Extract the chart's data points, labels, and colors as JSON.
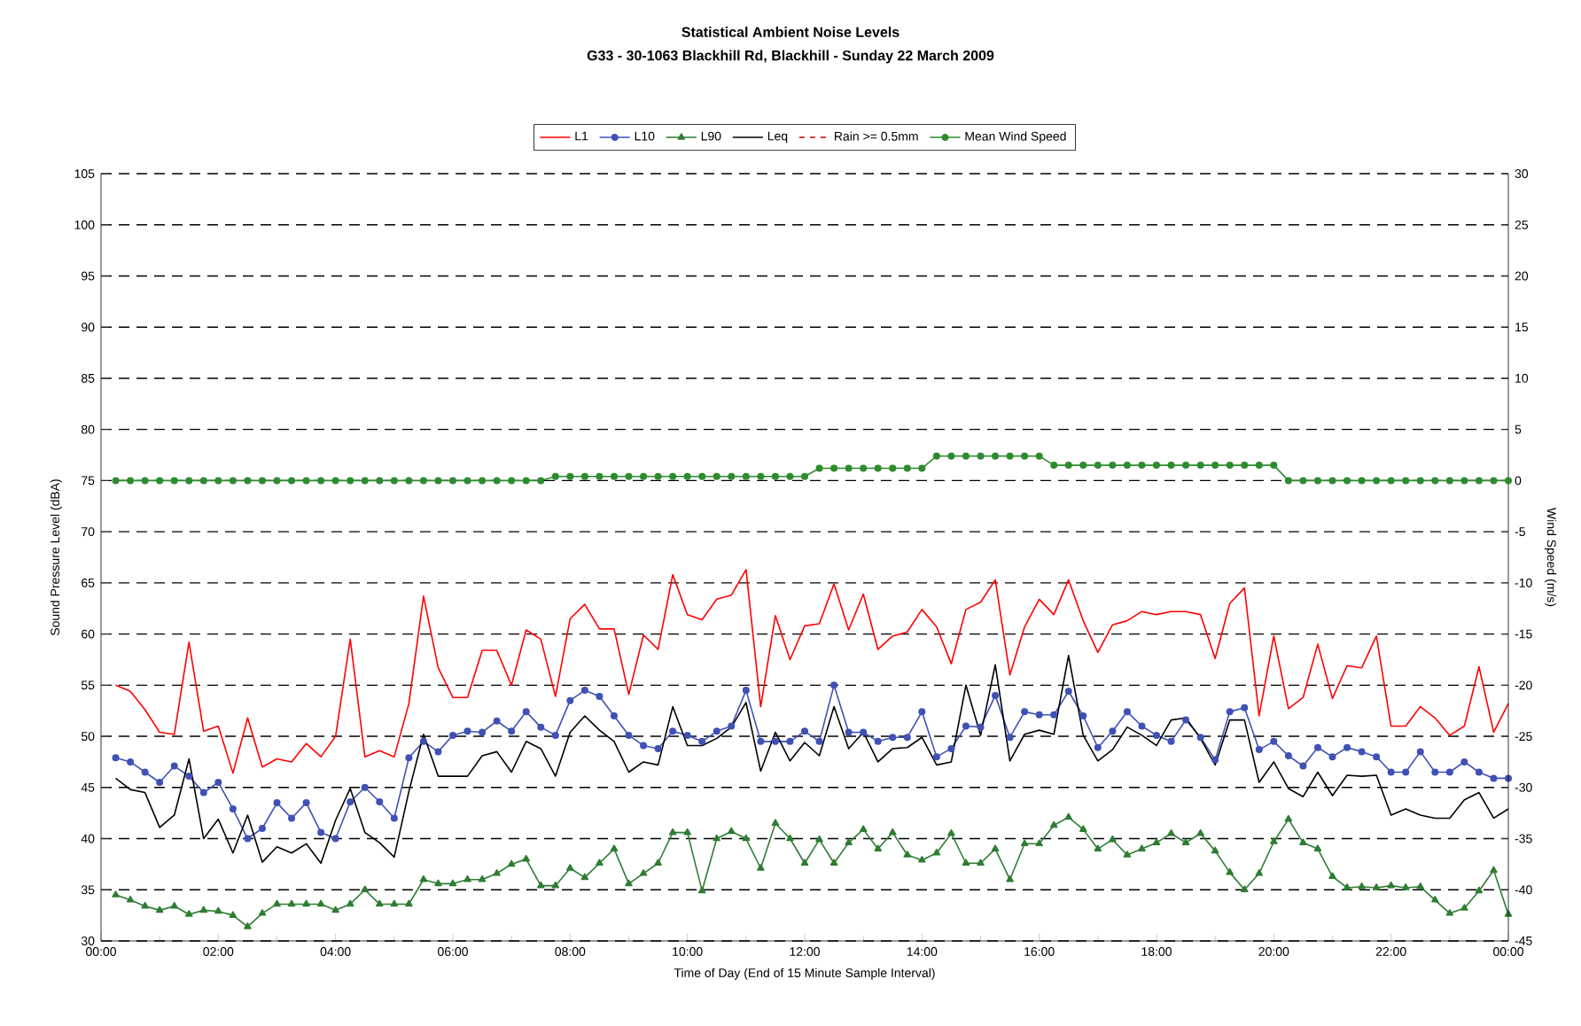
{
  "chart_data": {
    "type": "line",
    "title": "Statistical Ambient Noise Levels",
    "subtitle": "G33 - 30-1063 Blackhill Rd, Blackhill - Sunday 22 March 2009",
    "xlabel": "Time of Day (End of 15 Minute Sample Interval)",
    "ylabel": "Sound Pressure Level (dBA)",
    "y2label": "Wind Speed (m/s)",
    "x": [
      0.25,
      0.5,
      0.75,
      1,
      1.25,
      1.5,
      1.75,
      2,
      2.25,
      2.5,
      2.75,
      3,
      3.25,
      3.5,
      3.75,
      4,
      4.25,
      4.5,
      4.75,
      5,
      5.25,
      5.5,
      5.75,
      6,
      6.25,
      6.5,
      6.75,
      7,
      7.25,
      7.5,
      7.75,
      8,
      8.25,
      8.5,
      8.75,
      9,
      9.25,
      9.5,
      9.75,
      10,
      10.25,
      10.5,
      10.75,
      11,
      11.25,
      11.5,
      11.75,
      12,
      12.25,
      12.5,
      12.75,
      13,
      13.25,
      13.5,
      13.75,
      14,
      14.25,
      14.5,
      14.75,
      15,
      15.25,
      15.5,
      15.75,
      16,
      16.25,
      16.5,
      16.75,
      17,
      17.25,
      17.5,
      17.75,
      18,
      18.25,
      18.5,
      18.75,
      19,
      19.25,
      19.5,
      19.75,
      20,
      20.25,
      20.5,
      20.75,
      21,
      21.25,
      21.5,
      21.75,
      22,
      22.25,
      22.5,
      22.75,
      23,
      23.25,
      23.5,
      23.75,
      24
    ],
    "xlim": [
      0,
      24
    ],
    "xticks": [
      {
        "value": 0,
        "label": "00:00"
      },
      {
        "value": 2,
        "label": "02:00"
      },
      {
        "value": 4,
        "label": "04:00"
      },
      {
        "value": 6,
        "label": "06:00"
      },
      {
        "value": 8,
        "label": "08:00"
      },
      {
        "value": 10,
        "label": "10:00"
      },
      {
        "value": 12,
        "label": "12:00"
      },
      {
        "value": 14,
        "label": "14:00"
      },
      {
        "value": 16,
        "label": "16:00"
      },
      {
        "value": 18,
        "label": "18:00"
      },
      {
        "value": 20,
        "label": "20:00"
      },
      {
        "value": 22,
        "label": "22:00"
      },
      {
        "value": 24,
        "label": "00:00"
      }
    ],
    "ylim": [
      30,
      105
    ],
    "yticks": [
      30,
      35,
      40,
      45,
      50,
      55,
      60,
      65,
      70,
      75,
      80,
      85,
      90,
      95,
      100,
      105
    ],
    "y2lim": [
      -45,
      30
    ],
    "y2ticks": [
      -45,
      -40,
      -35,
      -30,
      -25,
      -20,
      -15,
      -10,
      -5,
      0,
      5,
      10,
      15,
      20,
      25,
      30
    ],
    "grid": "y",
    "legend": "top",
    "series": [
      {
        "name": "L1",
        "color": "#ff0000",
        "marker": "none",
        "line_style": "solid",
        "values": [
          55,
          54.4,
          52.6,
          50.4,
          50.2,
          59.2,
          50.5,
          51,
          46.4,
          51.8,
          47,
          47.8,
          47.5,
          49.3,
          48,
          50,
          59.5,
          48,
          48.6,
          48,
          53.2,
          63.7,
          56.7,
          53.8,
          53.8,
          58.4,
          58.4,
          55,
          60.4,
          59.5,
          53.9,
          61.5,
          62.9,
          60.5,
          60.5,
          54.1,
          59.9,
          58.5,
          65.8,
          61.9,
          61.4,
          63.4,
          63.8,
          66.3,
          52.9,
          61.8,
          57.5,
          60.8,
          61,
          64.9,
          60.4,
          63.9,
          58.5,
          59.8,
          60.2,
          62.4,
          60.7,
          57.1,
          62.4,
          63.1,
          65.3,
          56,
          60.7,
          63.4,
          61.9,
          65.3,
          61.3,
          58.2,
          60.9,
          61.3,
          62.2,
          61.9,
          62.2,
          62.2,
          61.9,
          57.6,
          63,
          64.5,
          52,
          59.8,
          52.7,
          53.8,
          59,
          53.7,
          56.9,
          56.7,
          59.8,
          51,
          51,
          52.9,
          51.8,
          50.1,
          51,
          56.8,
          50.4,
          53.2
        ]
      },
      {
        "name": "L10",
        "color": "#3f51b5",
        "marker": "circle",
        "line_style": "solid",
        "values": [
          47.9,
          47.5,
          46.5,
          45.5,
          47.1,
          46.1,
          44.5,
          45.5,
          42.9,
          40,
          41,
          43.5,
          42,
          43.5,
          40.6,
          40,
          43.6,
          45,
          43.6,
          42,
          47.9,
          49.5,
          48.5,
          50.1,
          50.5,
          50.4,
          51.5,
          50.5,
          52.4,
          50.9,
          50.1,
          53.5,
          54.5,
          53.9,
          52,
          50.1,
          49.1,
          48.8,
          50.5,
          50.1,
          49.5,
          50.5,
          51,
          54.5,
          49.5,
          49.5,
          49.5,
          50.5,
          49.5,
          55,
          50.4,
          50.4,
          49.5,
          49.9,
          49.9,
          52.4,
          48,
          48.8,
          51,
          50.9,
          54,
          49.9,
          52.4,
          52.1,
          52.1,
          54.4,
          52,
          48.9,
          50.5,
          52.4,
          51,
          50.1,
          49.5,
          51.6,
          49.9,
          47.7,
          52.4,
          52.8,
          48.7,
          49.5,
          48.1,
          47.1,
          48.9,
          48,
          48.9,
          48.5,
          48,
          46.5,
          46.5,
          48.5,
          46.5,
          46.5,
          47.5,
          46.5,
          45.9,
          45.9
        ]
      },
      {
        "name": "L90",
        "color": "#2e7d32",
        "marker": "triangle",
        "line_style": "solid",
        "values": [
          34.5,
          34,
          33.4,
          33,
          33.4,
          32.6,
          33,
          32.9,
          32.5,
          31.4,
          32.7,
          33.6,
          33.6,
          33.6,
          33.6,
          33,
          33.6,
          35,
          33.6,
          33.6,
          33.6,
          36,
          35.6,
          35.6,
          36,
          36,
          36.6,
          37.5,
          38,
          35.4,
          35.4,
          37.1,
          36.2,
          37.6,
          39,
          35.6,
          36.6,
          37.6,
          40.6,
          40.6,
          34.9,
          40,
          40.7,
          40,
          37.1,
          41.5,
          40,
          37.6,
          39.9,
          37.6,
          39.6,
          40.9,
          39,
          40.6,
          38.4,
          37.9,
          38.6,
          40.5,
          37.6,
          37.6,
          39,
          36,
          39.5,
          39.5,
          41.3,
          42.1,
          40.9,
          39,
          39.9,
          38.4,
          39,
          39.6,
          40.5,
          39.6,
          40.5,
          38.8,
          36.7,
          35,
          36.6,
          39.7,
          41.9,
          39.6,
          39,
          36.3,
          35.2,
          35.3,
          35.2,
          35.4,
          35.2,
          35.3,
          34,
          32.7,
          33.2,
          34.9,
          36.9,
          32.6
        ]
      },
      {
        "name": "Leq",
        "color": "#000000",
        "marker": "none",
        "line_style": "solid",
        "values": [
          45.9,
          44.8,
          44.5,
          41.1,
          42.3,
          47.8,
          40,
          41.9,
          38.6,
          42.3,
          37.7,
          39.2,
          38.6,
          39.5,
          37.6,
          41.8,
          44.9,
          40.6,
          39.6,
          38.2,
          44.6,
          50.2,
          46.1,
          46.1,
          46.1,
          48.1,
          48.5,
          46.5,
          49.5,
          48.8,
          46.1,
          50.4,
          52,
          50.6,
          49.5,
          46.5,
          47.5,
          47.2,
          52.9,
          49.1,
          49.1,
          49.8,
          50.9,
          53.3,
          46.6,
          50.4,
          47.6,
          49.4,
          48.1,
          52.9,
          48.8,
          50.4,
          47.5,
          48.8,
          48.9,
          49.9,
          47.2,
          47.5,
          55,
          50.1,
          57,
          47.6,
          50.2,
          50.6,
          50.2,
          57.9,
          50.1,
          47.6,
          48.7,
          50.9,
          50.1,
          49.1,
          51.6,
          51.8,
          49.8,
          47.2,
          51.6,
          51.6,
          45.5,
          47.5,
          44.9,
          44.1,
          46.5,
          44.2,
          46.2,
          46.1,
          46.2,
          42.3,
          42.9,
          42.3,
          42,
          42,
          43.8,
          44.5,
          42,
          42.9
        ]
      },
      {
        "name": "Rain >= 0.5mm",
        "color": "#c00000",
        "marker": "none",
        "line_style": "dashed",
        "values": [
          null,
          null,
          null,
          null,
          null,
          null,
          null,
          null,
          null,
          null,
          null,
          null,
          null,
          null,
          null,
          null,
          null,
          null,
          null,
          null,
          null,
          null,
          null,
          null,
          null,
          null,
          null,
          null,
          null,
          null,
          null,
          null,
          null,
          null,
          null,
          null,
          null,
          null,
          null,
          null,
          null,
          null,
          null,
          null,
          null,
          null,
          null,
          null,
          null,
          null,
          null,
          null,
          null,
          null,
          null,
          null,
          null,
          null,
          null,
          null,
          null,
          null,
          null,
          null,
          null,
          null,
          null,
          null,
          null,
          null,
          null,
          null,
          null,
          null,
          null,
          null,
          null,
          null,
          null,
          null,
          null,
          null,
          null,
          null,
          null,
          null,
          null,
          null,
          null,
          null,
          null,
          null,
          null,
          null,
          null,
          null
        ]
      },
      {
        "name": "Mean Wind Speed",
        "color": "#2e8b2e",
        "marker": "circle",
        "line_style": "solid",
        "axis": "y2",
        "values": [
          0,
          0,
          0,
          0,
          0,
          0,
          0,
          0,
          0,
          0,
          0,
          0,
          0,
          0,
          0,
          0,
          0,
          0,
          0,
          0,
          0,
          0,
          0,
          0,
          0,
          0,
          0,
          0,
          0,
          0,
          0.4,
          0.4,
          0.4,
          0.4,
          0.4,
          0.4,
          0.4,
          0.4,
          0.4,
          0.4,
          0.4,
          0.4,
          0.4,
          0.4,
          0.4,
          0.4,
          0.4,
          0.4,
          1.2,
          1.2,
          1.2,
          1.2,
          1.2,
          1.2,
          1.2,
          1.2,
          2.4,
          2.4,
          2.4,
          2.4,
          2.4,
          2.4,
          2.4,
          2.4,
          1.5,
          1.5,
          1.5,
          1.5,
          1.5,
          1.5,
          1.5,
          1.5,
          1.5,
          1.5,
          1.5,
          1.5,
          1.5,
          1.5,
          1.5,
          1.5,
          0,
          0,
          0,
          0,
          0,
          0,
          0,
          0,
          0,
          0,
          0,
          0,
          0,
          0,
          0,
          0
        ]
      }
    ]
  }
}
